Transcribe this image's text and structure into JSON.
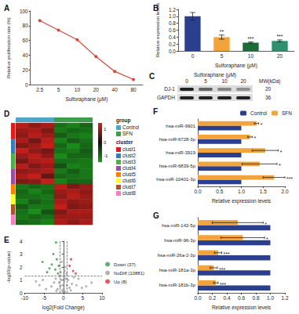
{
  "chart_data": [
    {
      "type": "line",
      "title": "A",
      "categories": [
        "2.5",
        "5",
        "10",
        "20",
        "40",
        "80"
      ],
      "values": [
        87,
        74,
        61,
        38,
        18,
        7
      ],
      "color": "#d9473a",
      "marker": "circle",
      "x_label": "Sulforaphane (μM)",
      "y_label": "Relative proliferation rate (%)",
      "ylim": [
        0,
        100
      ],
      "yticks": [
        0,
        20,
        40,
        60,
        80,
        100
      ],
      "grid": false
    },
    {
      "type": "bar",
      "title": "B",
      "categories": [
        "0",
        "5",
        "10",
        "20"
      ],
      "values": [
        1.0,
        0.4,
        0.24,
        0.29
      ],
      "errors": [
        0.11,
        0.06,
        0.02,
        0.03
      ],
      "colors": [
        "#2b3f8f",
        "#f2a33a",
        "#1e6b3a",
        "#2f8f6f"
      ],
      "significance": [
        null,
        "**",
        "***",
        "***"
      ],
      "x_label": "Sulforaphane (μM)",
      "y_label": "Relative expression levels",
      "ylim": [
        0,
        1.2
      ],
      "yticks": [
        {
          "value": 0,
          "label": "0.0"
        },
        0.2,
        0.4,
        0.6,
        0.8,
        {
          "value": 1,
          "label": "1.0"
        },
        1.2
      ],
      "grid": false
    },
    {
      "type": "blot",
      "title": "C",
      "x_label": "Sulforaphane (μM)",
      "categories": [
        "0",
        "5",
        "10",
        "20"
      ],
      "mw_label": "MW(kDa)",
      "rows": [
        {
          "name": "DJ-1",
          "mw": "20",
          "values": [
            0.85,
            0.55,
            0.4,
            0.35
          ]
        },
        {
          "name": "GAPDH",
          "mw": "36",
          "values": [
            0.85,
            0.85,
            0.85,
            0.85
          ]
        }
      ]
    },
    {
      "type": "heatmap",
      "title": "D",
      "tick_labels": false,
      "cells": [
        [
          1.2,
          0.9,
          1.1,
          -1.0,
          -1.2,
          -0.9
        ],
        [
          1.0,
          1.1,
          0.8,
          -1.1,
          -0.9,
          -1.0
        ],
        [
          0.9,
          1.2,
          1.0,
          -0.8,
          -1.1,
          -1.2
        ],
        [
          1.1,
          0.7,
          1.2,
          -1.2,
          -0.8,
          -1.0
        ],
        [
          0.8,
          1.0,
          1.3,
          -0.9,
          -1.3,
          -0.9
        ],
        [
          1.3,
          0.9,
          0.7,
          -1.0,
          -1.1,
          -0.8
        ],
        [
          1.0,
          1.2,
          0.9,
          -1.3,
          -0.9,
          -0.9
        ],
        [
          0.7,
          1.1,
          1.2,
          -1.0,
          -1.0,
          -1.1
        ],
        [
          1.2,
          0.8,
          1.0,
          -0.7,
          -1.2,
          -1.1
        ],
        [
          0.9,
          1.0,
          1.1,
          -1.1,
          -0.8,
          -1.1
        ],
        [
          1.1,
          1.3,
          0.6,
          -0.9,
          -1.0,
          -1.1
        ],
        [
          0.8,
          0.9,
          1.3,
          -1.2,
          -0.9,
          -0.9
        ],
        [
          -1.1,
          -0.9,
          -1.0,
          1.2,
          0.8,
          1.0
        ],
        [
          -0.9,
          -1.2,
          -0.9,
          1.0,
          1.1,
          0.9
        ],
        [
          -1.0,
          -1.0,
          -1.1,
          0.9,
          1.2,
          1.0
        ],
        [
          -1.2,
          -0.8,
          -1.0,
          1.1,
          0.9,
          1.0
        ],
        [
          -0.8,
          -1.1,
          -1.1,
          1.3,
          0.8,
          0.9
        ],
        [
          -1.0,
          -1.3,
          -0.7,
          0.8,
          1.1,
          1.1
        ],
        [
          -1.1,
          -0.9,
          -1.0,
          1.0,
          1.0,
          1.0
        ],
        [
          -0.9,
          -1.0,
          -1.2,
          1.1,
          0.9,
          1.1
        ]
      ],
      "group_label": "group",
      "groups": [
        {
          "name": "Control",
          "color": "#4da6c9"
        },
        {
          "name": "SFN",
          "color": "#3e9e4e"
        }
      ],
      "column_groups": [
        0,
        0,
        0,
        1,
        1,
        1
      ],
      "cluster_label": "cluster",
      "clusters": [
        {
          "name": "clust1",
          "color": "#e41a1c"
        },
        {
          "name": "clust2",
          "color": "#377eb8"
        },
        {
          "name": "clust3",
          "color": "#4daf4a"
        },
        {
          "name": "clust4",
          "color": "#984ea3"
        },
        {
          "name": "clust5",
          "color": "#ff7f00"
        },
        {
          "name": "clust6",
          "color": "#ffff33"
        },
        {
          "name": "clust7",
          "color": "#a65628"
        },
        {
          "name": "clust8",
          "color": "#f781bf"
        }
      ],
      "row_clusters": [
        0,
        0,
        0,
        1,
        1,
        1,
        2,
        2,
        2,
        3,
        3,
        3,
        4,
        4,
        5,
        5,
        6,
        6,
        7,
        7
      ],
      "colorbar": {
        "range": [
          -1.5,
          1.5
        ],
        "ticks": [
          -1,
          0,
          1
        ],
        "colors": [
          "#1a9e1a",
          "#111111",
          "#e0201b"
        ]
      }
    },
    {
      "type": "scatter",
      "title": "E",
      "marker": "circle",
      "x_label": "log2(Fold Change)",
      "y_label": "-log10(p-value)",
      "xlim": [
        -10,
        10
      ],
      "xticks": [
        -10,
        -5,
        0,
        5,
        10
      ],
      "ylim": [
        0,
        4
      ],
      "yticks": [
        0,
        1,
        2,
        3,
        4
      ],
      "grid": false,
      "legend": "right",
      "line_style": "dashed",
      "thresholds": {
        "x": [
          -1,
          1
        ],
        "y": [
          1.3
        ]
      },
      "series": [
        {
          "name": "Down (37)",
          "color": "#2e9e3e",
          "values": [
            [
              -1.4,
              1.5
            ],
            [
              -2.1,
              1.8
            ],
            [
              -3.0,
              2.2
            ],
            [
              -1.7,
              2.6
            ],
            [
              -4.2,
              1.6
            ],
            [
              -2.6,
              3.0
            ],
            [
              -1.9,
              3.9
            ],
            [
              -3.6,
              1.9
            ],
            [
              -5.4,
              2.4
            ],
            [
              -1.2,
              2.1
            ]
          ]
        },
        {
          "name": "NoDiff (10881)",
          "color": "#a0a0a0",
          "values": [
            [
              -0.3,
              0.2
            ],
            [
              0.4,
              0.1
            ],
            [
              -0.8,
              0.5
            ],
            [
              0.9,
              0.6
            ],
            [
              -1.5,
              0.3
            ],
            [
              1.6,
              0.4
            ],
            [
              -2.4,
              0.8
            ],
            [
              2.2,
              0.7
            ],
            [
              -0.5,
              1.0
            ],
            [
              0.6,
              1.1
            ],
            [
              -3.1,
              0.5
            ],
            [
              3.4,
              0.6
            ],
            [
              -0.2,
              0.6
            ],
            [
              0.2,
              0.9
            ],
            [
              -1.1,
              0.8
            ],
            [
              1.2,
              1.0
            ],
            [
              -4.5,
              0.3
            ],
            [
              4.8,
              0.4
            ],
            [
              -6.2,
              0.6
            ],
            [
              5.9,
              0.5
            ],
            [
              -0.7,
              1.6
            ],
            [
              0.5,
              2.0
            ],
            [
              -0.4,
              2.4
            ],
            [
              0.8,
              1.5
            ],
            [
              -2.0,
              1.1
            ],
            [
              2.7,
              1.2
            ],
            [
              -0.1,
              0.05
            ],
            [
              0.1,
              0.3
            ],
            [
              -1.8,
              0.15
            ],
            [
              1.9,
              0.2
            ],
            [
              -7.1,
              0.9
            ],
            [
              7.3,
              0.8
            ],
            [
              -0.9,
              1.3
            ],
            [
              0.3,
              1.7
            ],
            [
              -5.3,
              1.0
            ],
            [
              3.9,
              1.1
            ]
          ]
        },
        {
          "name": "Up (8)",
          "color": "#e0302a",
          "values": [
            [
              2.5,
              1.7
            ],
            [
              1.6,
              2.1
            ],
            [
              3.2,
              1.5
            ],
            [
              2.0,
              2.6
            ]
          ]
        }
      ]
    },
    {
      "type": "bar",
      "title": "F",
      "orientation": "horizontal",
      "legend": "top-right",
      "grid": false,
      "categories": [
        "hsa-miR-9901",
        "hsa-miR-6728-3p",
        "hsa-miR-3919",
        "hsa-miR-6839-5p",
        "hsa-miR-10401-3p"
      ],
      "x_label": "Relative expression levels",
      "xlim": [
        0,
        2
      ],
      "xticks": [
        {
          "value": 0,
          "label": "0.0"
        },
        0.5,
        {
          "value": 1,
          "label": "1.0"
        },
        1.5,
        {
          "value": 2,
          "label": "2.0"
        }
      ],
      "series": [
        {
          "name": "Control",
          "color": "#2b3f8f",
          "values": [
            1,
            1,
            1,
            1,
            1
          ],
          "errors": [
            0,
            0,
            0,
            0,
            0
          ]
        },
        {
          "name": "SFN",
          "color": "#f2a33a",
          "values": [
            1.35,
            1.2,
            1.55,
            1.42,
            1.75
          ],
          "errors": [
            0.05,
            0.05,
            0.3,
            0.4,
            0.25
          ],
          "significance": [
            "*",
            "*",
            "*",
            "*",
            "***"
          ]
        }
      ]
    },
    {
      "type": "bar",
      "title": "G",
      "orientation": "horizontal",
      "grid": false,
      "categories": [
        "hsa-miR-142-5p",
        "hsa-miR-96-3p",
        "hsa-miR-26a-2-3p",
        "hsa-miR-181a-3p",
        "hsa-miR-181b-3p"
      ],
      "x_label": "Relative expression levels",
      "xlim": [
        0,
        1.2
      ],
      "xticks": [
        {
          "value": 0,
          "label": "0.0"
        },
        0.2,
        0.4,
        0.6,
        0.8,
        {
          "value": 1,
          "label": "1.0"
        },
        1.2
      ],
      "series": [
        {
          "color": "#2b3f8f",
          "values": [
            1,
            1,
            1,
            1,
            1
          ],
          "errors": [
            0,
            0,
            0,
            0,
            0
          ]
        },
        {
          "color": "#f2a33a",
          "values": [
            0.55,
            0.62,
            0.28,
            0.22,
            0.25
          ],
          "errors": [
            0.35,
            0.3,
            0.05,
            0.05,
            0.03
          ],
          "significance": [
            "*",
            "*",
            "***",
            "***",
            "***"
          ]
        }
      ]
    }
  ]
}
